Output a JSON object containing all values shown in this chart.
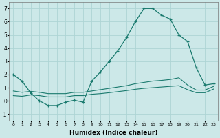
{
  "xlabel": "Humidex (Indice chaleur)",
  "background_color": "#cce8e8",
  "grid_color": "#aed4d4",
  "line_color": "#1a7a6e",
  "ylim": [
    -1.5,
    7.5
  ],
  "yticks": [
    -1,
    0,
    1,
    2,
    3,
    4,
    5,
    6,
    7
  ],
  "xticks": [
    0,
    1,
    2,
    3,
    4,
    5,
    6,
    7,
    8,
    9,
    10,
    11,
    12,
    13,
    14,
    15,
    16,
    17,
    18,
    19,
    20,
    21,
    22,
    23
  ],
  "xlim": [
    -0.5,
    23.5
  ],
  "main_line_x": [
    0,
    1,
    2,
    3,
    4,
    5,
    6,
    7,
    8,
    9,
    10,
    11,
    12,
    13,
    14,
    15,
    16,
    17,
    18,
    19,
    20,
    21,
    22,
    23
  ],
  "main_line_y": [
    2.0,
    1.5,
    0.6,
    0.0,
    -0.35,
    -0.35,
    -0.1,
    0.05,
    -0.1,
    1.5,
    2.2,
    3.0,
    3.8,
    4.8,
    6.0,
    7.0,
    7.0,
    6.5,
    6.2,
    5.0,
    4.5,
    2.5,
    1.2,
    1.3
  ],
  "lower_band_x": [
    0,
    1,
    2,
    3,
    4,
    5,
    6,
    7,
    8,
    9,
    10,
    11,
    12,
    13,
    14,
    15,
    16,
    17,
    18,
    19,
    20,
    21,
    22,
    23
  ],
  "lower_band_y": [
    0.4,
    0.35,
    0.45,
    0.4,
    0.3,
    0.3,
    0.3,
    0.4,
    0.4,
    0.5,
    0.55,
    0.62,
    0.7,
    0.78,
    0.88,
    0.95,
    1.0,
    1.05,
    1.1,
    1.15,
    0.85,
    0.62,
    0.62,
    0.9
  ],
  "upper_band_x": [
    0,
    1,
    2,
    3,
    4,
    5,
    6,
    7,
    8,
    9,
    10,
    11,
    12,
    13,
    14,
    15,
    16,
    17,
    18,
    19,
    20,
    21,
    22,
    23
  ],
  "upper_band_y": [
    0.75,
    0.65,
    0.72,
    0.65,
    0.55,
    0.55,
    0.55,
    0.65,
    0.65,
    0.75,
    0.85,
    0.95,
    1.05,
    1.15,
    1.3,
    1.4,
    1.5,
    1.55,
    1.62,
    1.75,
    1.2,
    0.82,
    0.82,
    1.1
  ]
}
